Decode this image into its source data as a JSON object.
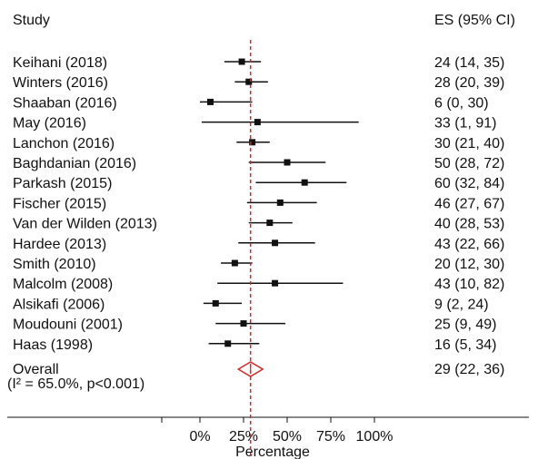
{
  "chart_data": {
    "type": "forest",
    "headers": {
      "study": "Study",
      "estimate": "ES (95% CI)"
    },
    "xlabel": "Percentage",
    "xlim": [
      0,
      100
    ],
    "ticks": [
      0,
      25,
      50,
      75,
      100
    ],
    "tick_labels": [
      "0%",
      "25%",
      "50%",
      "75%",
      "100%"
    ],
    "reference_line": 29,
    "studies": [
      {
        "label": "Keihani (2018)",
        "es": 24,
        "lo": 14,
        "hi": 35,
        "es_text": "24 (14, 35)"
      },
      {
        "label": "Winters (2016)",
        "es": 28,
        "lo": 20,
        "hi": 39,
        "es_text": "28 (20, 39)"
      },
      {
        "label": "Shaaban (2016)",
        "es": 6,
        "lo": 0,
        "hi": 30,
        "es_text": "6 (0, 30)"
      },
      {
        "label": "May (2016)",
        "es": 33,
        "lo": 1,
        "hi": 91,
        "es_text": "33 (1, 91)"
      },
      {
        "label": "Lanchon (2016)",
        "es": 30,
        "lo": 21,
        "hi": 40,
        "es_text": "30 (21, 40)"
      },
      {
        "label": "Baghdanian (2016)",
        "es": 50,
        "lo": 28,
        "hi": 72,
        "es_text": "50 (28, 72)"
      },
      {
        "label": "Parkash (2015)",
        "es": 60,
        "lo": 32,
        "hi": 84,
        "es_text": "60 (32, 84)"
      },
      {
        "label": "Fischer (2015)",
        "es": 46,
        "lo": 27,
        "hi": 67,
        "es_text": "46 (27, 67)"
      },
      {
        "label": "Van der Wilden (2013)",
        "es": 40,
        "lo": 28,
        "hi": 53,
        "es_text": "40 (28, 53)"
      },
      {
        "label": "Hardee (2013)",
        "es": 43,
        "lo": 22,
        "hi": 66,
        "es_text": "43 (22, 66)"
      },
      {
        "label": "Smith (2010)",
        "es": 20,
        "lo": 12,
        "hi": 30,
        "es_text": "20 (12, 30)"
      },
      {
        "label": "Malcolm (2008)",
        "es": 43,
        "lo": 10,
        "hi": 82,
        "es_text": "43 (10, 82)"
      },
      {
        "label": "Alsikafi (2006)",
        "es": 9,
        "lo": 2,
        "hi": 24,
        "es_text": "9 (2, 24)"
      },
      {
        "label": "Moudouni (2001)",
        "es": 25,
        "lo": 9,
        "hi": 49,
        "es_text": "25 (9, 49)"
      },
      {
        "label": "Haas (1998)",
        "es": 16,
        "lo": 5,
        "hi": 34,
        "es_text": "16 (5, 34)"
      }
    ],
    "overall": {
      "label": "Overall",
      "heterogeneity": "(I² = 65.0%, p<0.001)",
      "es": 29,
      "lo": 22,
      "hi": 36,
      "es_text": "29 (22, 36)"
    },
    "colors": {
      "marker": "#111111",
      "reference": "#d62728",
      "overall": "#d62728"
    }
  }
}
